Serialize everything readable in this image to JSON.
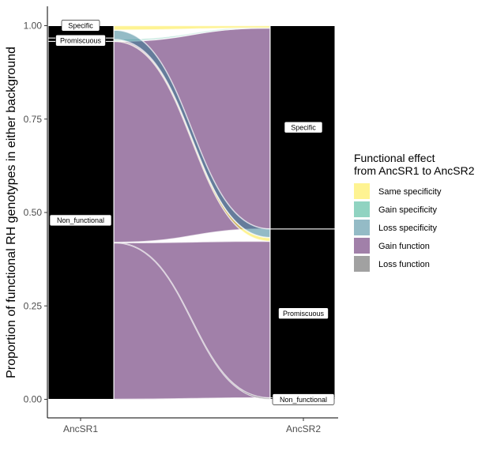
{
  "chart_data": {
    "type": "alluvial",
    "ylabel": "Proportion of functional RH genotypes in either background",
    "xlabel": "",
    "ylim": [
      0,
      1
    ],
    "y_ticks": [
      "0.00",
      "0.25",
      "0.50",
      "0.75",
      "1.00"
    ],
    "y_tick_values": [
      0,
      0.25,
      0.5,
      0.75,
      1.0
    ],
    "axes": [
      "AncSR1",
      "AncSR2"
    ],
    "strata": {
      "AncSR1": [
        {
          "name": "Non_functional",
          "from": 0.0,
          "to": 0.958
        },
        {
          "name": "Promiscuous",
          "from": 0.958,
          "to": 0.967
        },
        {
          "name": "Specific",
          "from": 0.967,
          "to": 1.0
        }
      ],
      "AncSR2": [
        {
          "name": "Non_functional",
          "from": 0.0,
          "to": 0.004
        },
        {
          "name": "Promiscuous",
          "from": 0.004,
          "to": 0.456
        },
        {
          "name": "Specific",
          "from": 0.456,
          "to": 1.0
        }
      ]
    },
    "flows": [
      {
        "effect": "Gain function",
        "left": [
          0.0,
          0.419
        ],
        "right": [
          0.004,
          0.423
        ]
      },
      {
        "effect": "Loss function",
        "left": [
          0.419,
          0.42
        ],
        "right": [
          0.0,
          0.004
        ]
      },
      {
        "effect": "Gain function",
        "left": [
          0.42,
          0.958
        ],
        "right": [
          0.456,
          0.994
        ]
      },
      {
        "effect": "Same specificity",
        "left": [
          0.958,
          0.959
        ],
        "right": [
          0.423,
          0.433
        ]
      },
      {
        "effect": "Gain specificity",
        "left": [
          0.959,
          0.963
        ],
        "right": [
          0.994,
          0.996
        ]
      },
      {
        "effect": "Loss specificity",
        "left": [
          0.963,
          0.988
        ],
        "right": [
          0.433,
          0.456
        ]
      },
      {
        "effect": "Same specificity",
        "left": [
          0.988,
          1.0
        ],
        "right": [
          0.994,
          1.0
        ]
      }
    ],
    "legend": {
      "title_line1": "Functional effect",
      "title_line2": "from AncSR1 to AncSR2",
      "placement": "right",
      "items": [
        {
          "label": "Same specificity",
          "color": "#FDE725"
        },
        {
          "label": "Gain specificity",
          "color": "#22A884"
        },
        {
          "label": "Loss specificity",
          "color": "#2A788E"
        },
        {
          "label": "Gain function",
          "color": "#440154"
        },
        {
          "label": "Loss function",
          "color": "#444444"
        }
      ]
    },
    "grid": false
  }
}
